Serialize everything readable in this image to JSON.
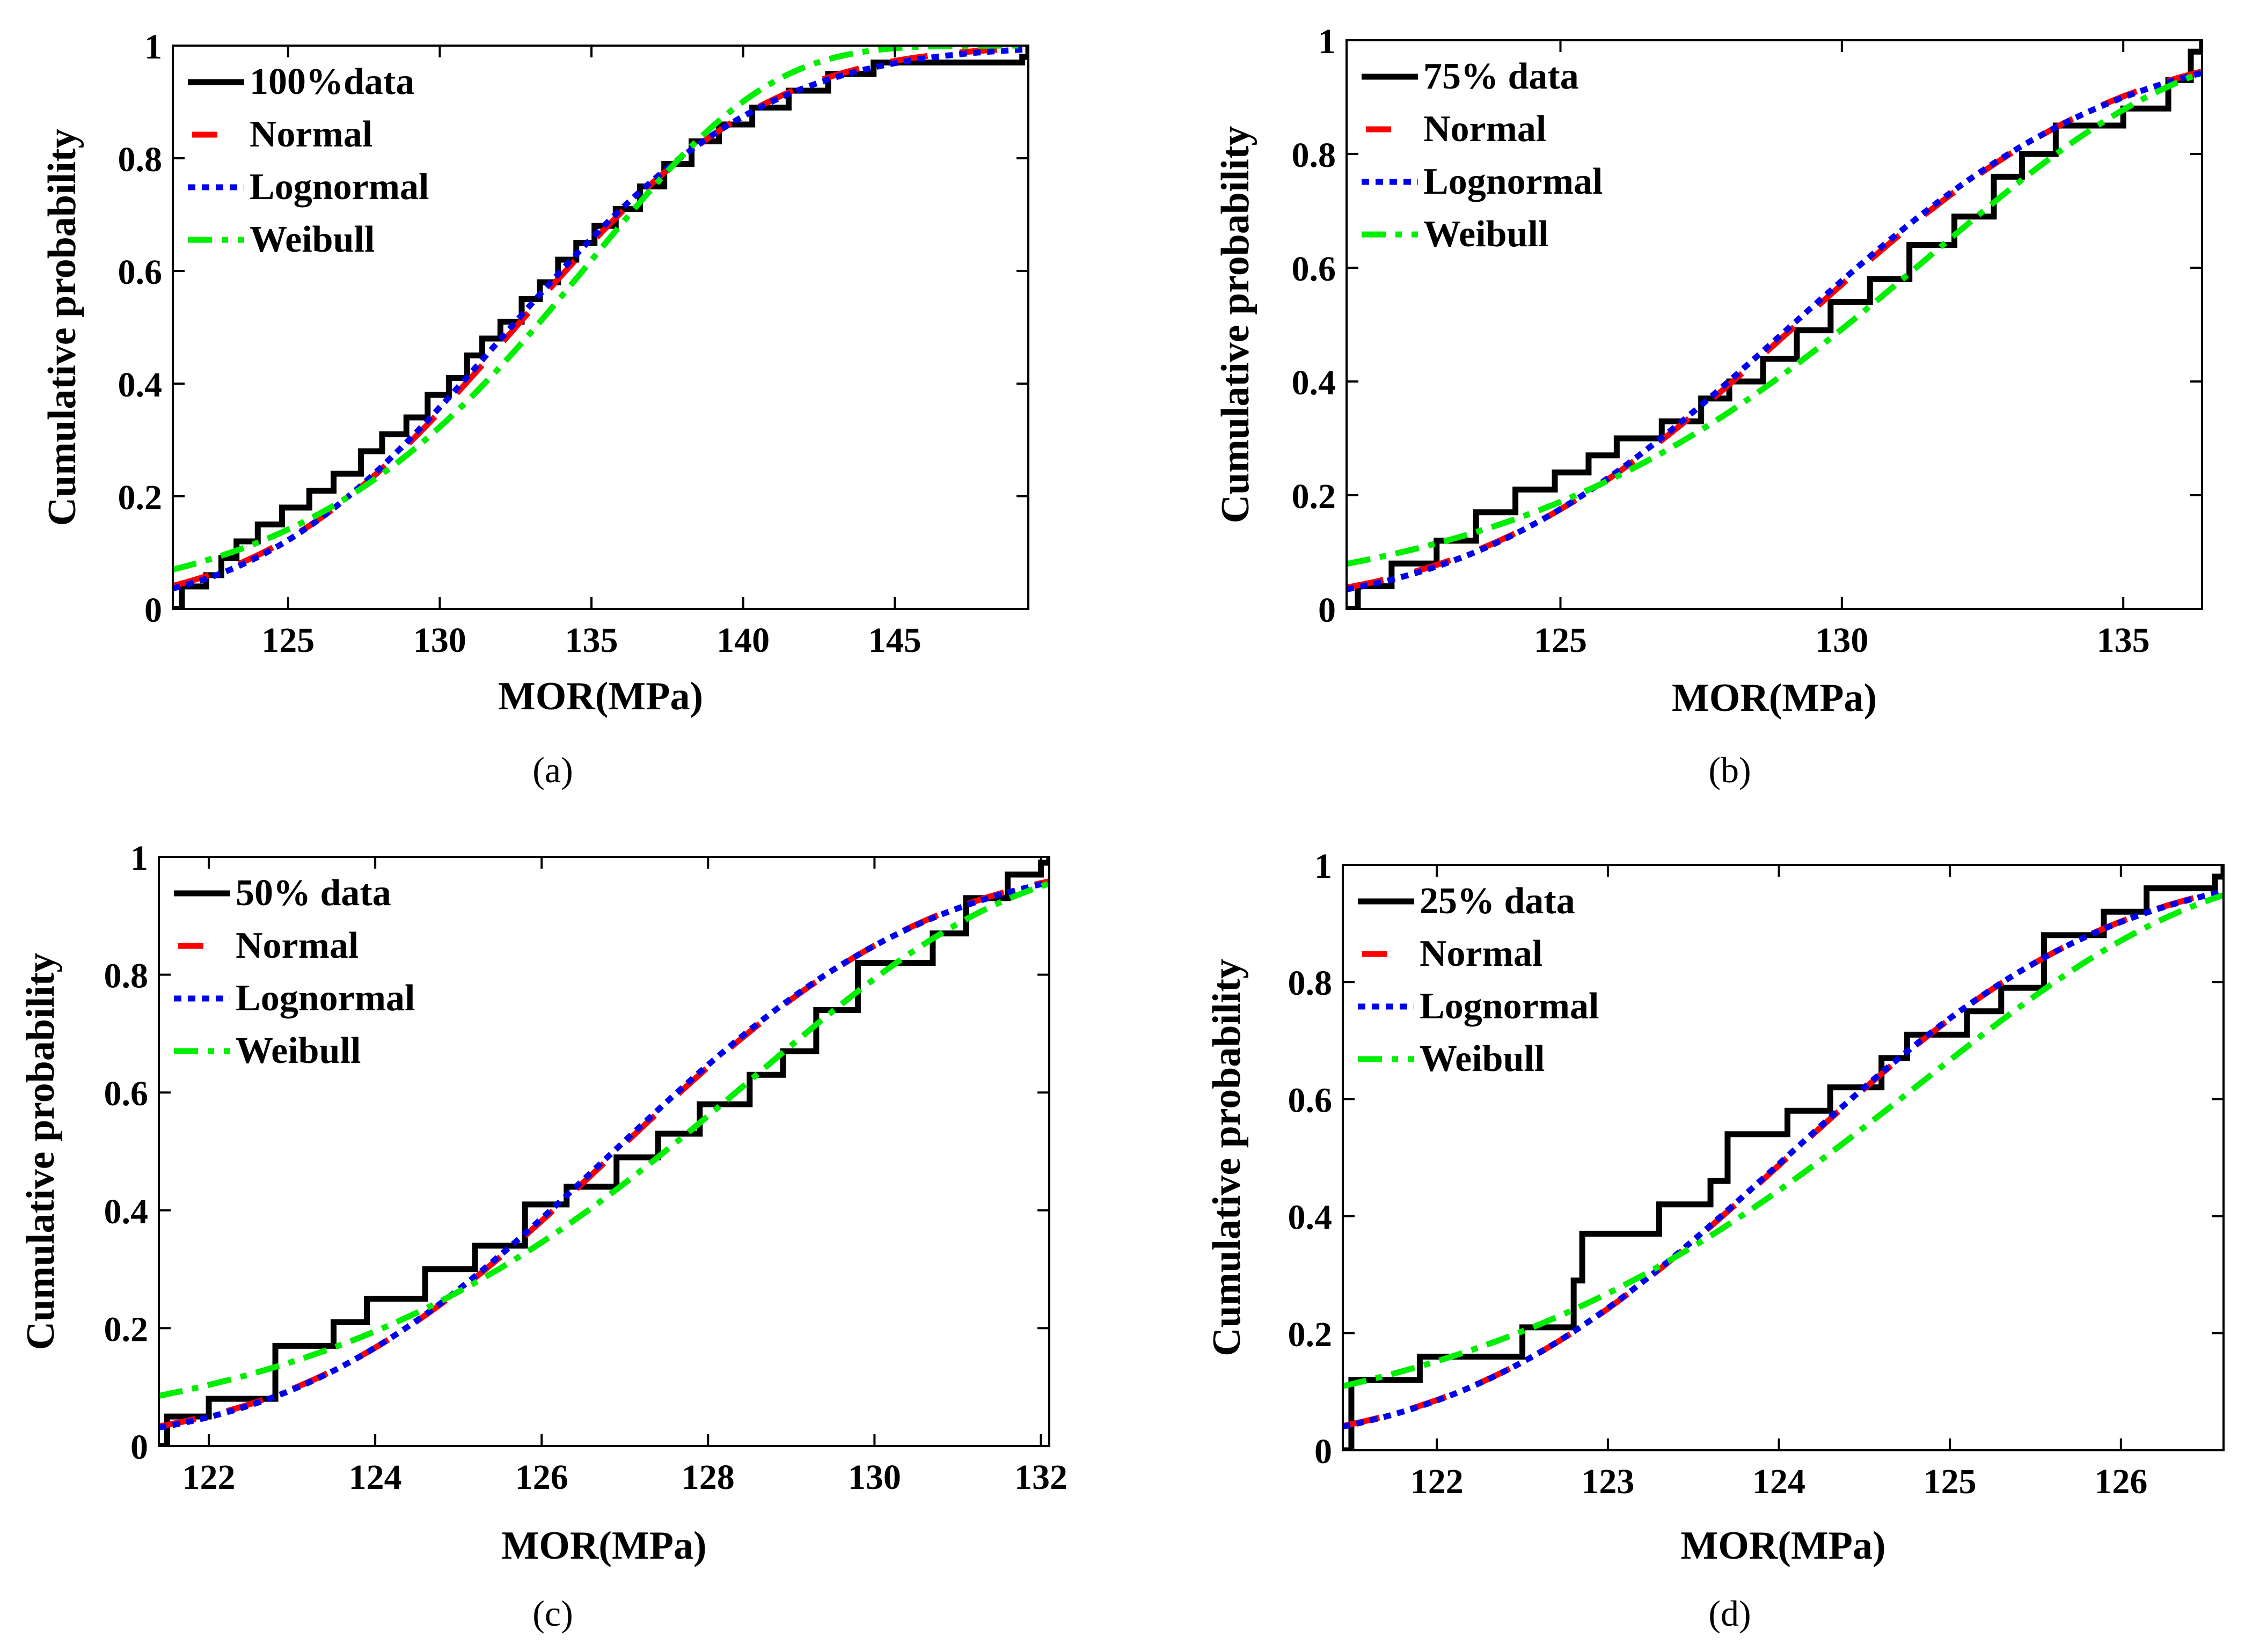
{
  "chart_data": [
    {
      "type": "line",
      "caption": "(a)",
      "xlabel": "MOR(MPa)",
      "ylabel": "Cumulative probability",
      "xlim": [
        121.2,
        149.4
      ],
      "ylim": [
        0,
        1
      ],
      "xticks": [
        125,
        130,
        135,
        140,
        145
      ],
      "yticks": [
        0,
        0.2,
        0.4,
        0.6,
        0.8,
        1
      ],
      "ytick_labels": [
        "0",
        "0.2",
        "0.4",
        "0.6",
        "0.8",
        "1"
      ],
      "legend_position": "top-left",
      "series": [
        {
          "name": "100%data",
          "kind": "step",
          "color": "#000000",
          "x": [
            121.2,
            121.5,
            122.3,
            122.8,
            123.3,
            124.0,
            124.8,
            125.7,
            126.5,
            127.4,
            128.1,
            128.9,
            129.6,
            130.3,
            130.9,
            131.4,
            132.0,
            132.7,
            133.3,
            133.9,
            134.5,
            135.1,
            135.8,
            136.6,
            137.4,
            138.3,
            139.2,
            140.3,
            141.5,
            142.8,
            144.3,
            149.2,
            149.4
          ],
          "y": [
            0.0,
            0.04,
            0.06,
            0.09,
            0.12,
            0.15,
            0.18,
            0.21,
            0.24,
            0.28,
            0.31,
            0.34,
            0.38,
            0.41,
            0.45,
            0.48,
            0.51,
            0.55,
            0.58,
            0.62,
            0.65,
            0.68,
            0.71,
            0.75,
            0.79,
            0.83,
            0.86,
            0.89,
            0.92,
            0.95,
            0.97,
            0.98,
            1.0
          ]
        },
        {
          "name": "Normal",
          "kind": "normal",
          "color": "#ff0000",
          "dash": "70 60",
          "mu": 132.5,
          "sigma": 6.5
        },
        {
          "name": "Lognormal",
          "kind": "lognormal",
          "color": "#0000ee",
          "dash": "14 12",
          "mu": 132.5,
          "sigma": 6.5
        },
        {
          "name": "Weibull",
          "kind": "weibull",
          "color": "#00ee00",
          "dash": "45 18 12 18",
          "scale": 135.2,
          "shape": 24
        }
      ]
    },
    {
      "type": "line",
      "caption": "(b)",
      "xlabel": "MOR(MPa)",
      "ylabel": "Cumulative probability",
      "xlim": [
        121.2,
        136.4
      ],
      "ylim": [
        0,
        1
      ],
      "xticks": [
        125,
        130,
        135
      ],
      "yticks": [
        0,
        0.2,
        0.4,
        0.6,
        0.8,
        1
      ],
      "ytick_labels": [
        "0",
        "0.2",
        "0.4",
        "0.6",
        "0.8",
        "1"
      ],
      "legend_position": "top-left",
      "series": [
        {
          "name": "75% data",
          "kind": "step",
          "color": "#000000",
          "x": [
            121.2,
            121.4,
            122.0,
            122.8,
            123.5,
            124.2,
            124.9,
            125.5,
            126.0,
            126.8,
            127.5,
            128.0,
            128.6,
            129.2,
            129.8,
            130.5,
            131.2,
            132.0,
            132.7,
            133.2,
            133.8,
            135.0,
            135.8,
            136.2,
            136.4
          ],
          "y": [
            0.0,
            0.04,
            0.08,
            0.12,
            0.17,
            0.21,
            0.24,
            0.27,
            0.3,
            0.33,
            0.37,
            0.4,
            0.44,
            0.49,
            0.54,
            0.58,
            0.64,
            0.69,
            0.76,
            0.8,
            0.85,
            0.88,
            0.93,
            0.98,
            1.0
          ]
        },
        {
          "name": "Normal",
          "kind": "normal",
          "color": "#ff0000",
          "dash": "70 60",
          "mu": 129.2,
          "sigma": 4.5
        },
        {
          "name": "Lognormal",
          "kind": "lognormal",
          "color": "#0000ee",
          "dash": "14 12",
          "mu": 129.2,
          "sigma": 4.5
        },
        {
          "name": "Weibull",
          "kind": "weibull",
          "color": "#00ee00",
          "dash": "45 18 12 18",
          "scale": 131.7,
          "shape": 30
        }
      ]
    },
    {
      "type": "line",
      "caption": "(c)",
      "xlabel": "MOR(MPa)",
      "ylabel": "Cumulative probability",
      "xlim": [
        121.4,
        132.1
      ],
      "ylim": [
        0,
        1
      ],
      "xticks": [
        122,
        124,
        126,
        128,
        130,
        132
      ],
      "yticks": [
        0,
        0.2,
        0.4,
        0.6,
        0.8,
        1
      ],
      "ytick_labels": [
        "0",
        "0.2",
        "0.4",
        "0.6",
        "0.8",
        "1"
      ],
      "legend_position": "top-left",
      "series": [
        {
          "name": "50% data",
          "kind": "step",
          "color": "#000000",
          "x": [
            121.4,
            121.5,
            122.0,
            122.8,
            123.5,
            123.9,
            124.6,
            125.2,
            125.8,
            126.3,
            126.9,
            127.4,
            127.9,
            128.5,
            128.9,
            129.3,
            129.8,
            130.7,
            131.1,
            131.6,
            132.0,
            132.1
          ],
          "y": [
            0.0,
            0.05,
            0.08,
            0.17,
            0.21,
            0.25,
            0.3,
            0.34,
            0.41,
            0.44,
            0.49,
            0.53,
            0.58,
            0.63,
            0.67,
            0.74,
            0.82,
            0.87,
            0.93,
            0.97,
            0.99,
            1.0
          ]
        },
        {
          "name": "Normal",
          "kind": "normal",
          "color": "#ff0000",
          "dash": "70 60",
          "mu": 126.9,
          "sigma": 3.0
        },
        {
          "name": "Lognormal",
          "kind": "lognormal",
          "color": "#0000ee",
          "dash": "14 12",
          "mu": 126.9,
          "sigma": 3.0
        },
        {
          "name": "Weibull",
          "kind": "weibull",
          "color": "#00ee00",
          "dash": "45 18 12 18",
          "scale": 128.6,
          "shape": 42
        }
      ]
    },
    {
      "type": "line",
      "caption": "(d)",
      "xlabel": "MOR(MPa)",
      "ylabel": "Cumulative probability",
      "xlim": [
        121.45,
        126.6
      ],
      "ylim": [
        0,
        1
      ],
      "xticks": [
        122,
        123,
        124,
        125,
        126
      ],
      "yticks": [
        0,
        0.2,
        0.4,
        0.6,
        0.8,
        1
      ],
      "ytick_labels": [
        "0",
        "0.2",
        "0.4",
        "0.6",
        "0.8",
        "1"
      ],
      "legend_position": "top-left",
      "series": [
        {
          "name": "25% data",
          "kind": "step",
          "color": "#000000",
          "x": [
            121.45,
            121.5,
            121.9,
            122.5,
            122.8,
            122.85,
            123.3,
            123.6,
            123.7,
            124.05,
            124.3,
            124.6,
            124.75,
            125.1,
            125.3,
            125.55,
            125.9,
            126.15,
            126.55,
            126.6
          ],
          "y": [
            0.0,
            0.12,
            0.16,
            0.21,
            0.29,
            0.37,
            0.42,
            0.46,
            0.54,
            0.58,
            0.62,
            0.67,
            0.71,
            0.75,
            0.79,
            0.88,
            0.92,
            0.96,
            0.98,
            1.0
          ]
        },
        {
          "name": "Normal",
          "kind": "normal",
          "color": "#ff0000",
          "dash": "70 60",
          "mu": 124.05,
          "sigma": 1.5
        },
        {
          "name": "Lognormal",
          "kind": "lognormal",
          "color": "#0000ee",
          "dash": "14 12",
          "mu": 124.05,
          "sigma": 1.5
        },
        {
          "name": "Weibull",
          "kind": "weibull",
          "color": "#00ee00",
          "dash": "45 18 12 18",
          "scale": 124.85,
          "shape": 78
        }
      ]
    }
  ]
}
